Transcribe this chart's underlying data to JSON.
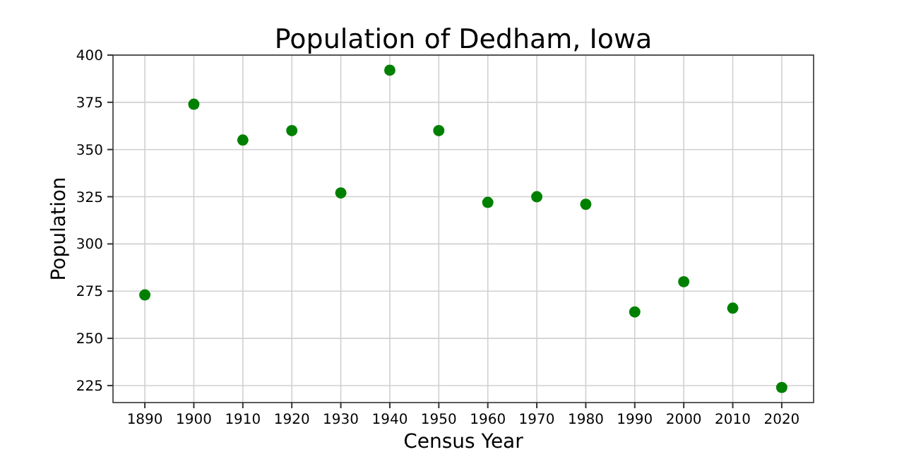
{
  "chart_data": {
    "type": "scatter",
    "title": "Population of Dedham, Iowa",
    "xlabel": "Census Year",
    "ylabel": "Population",
    "x": [
      1890,
      1900,
      1910,
      1920,
      1930,
      1940,
      1950,
      1960,
      1970,
      1980,
      1990,
      2000,
      2010,
      2020
    ],
    "series": [
      {
        "color": "#008000",
        "values": [
          273,
          374,
          355,
          360,
          327,
          392,
          360,
          322,
          325,
          321,
          264,
          280,
          266,
          224
        ]
      }
    ],
    "xlim": [
      1883.5,
      2026.5
    ],
    "xticks": [
      1890,
      1900,
      1910,
      1920,
      1930,
      1940,
      1950,
      1960,
      1970,
      1980,
      1990,
      2000,
      2010,
      2020
    ],
    "ylim": [
      216,
      400
    ],
    "yticks": [
      225,
      250,
      275,
      300,
      325,
      350,
      375,
      400
    ],
    "grid": true,
    "marker": "circle"
  }
}
